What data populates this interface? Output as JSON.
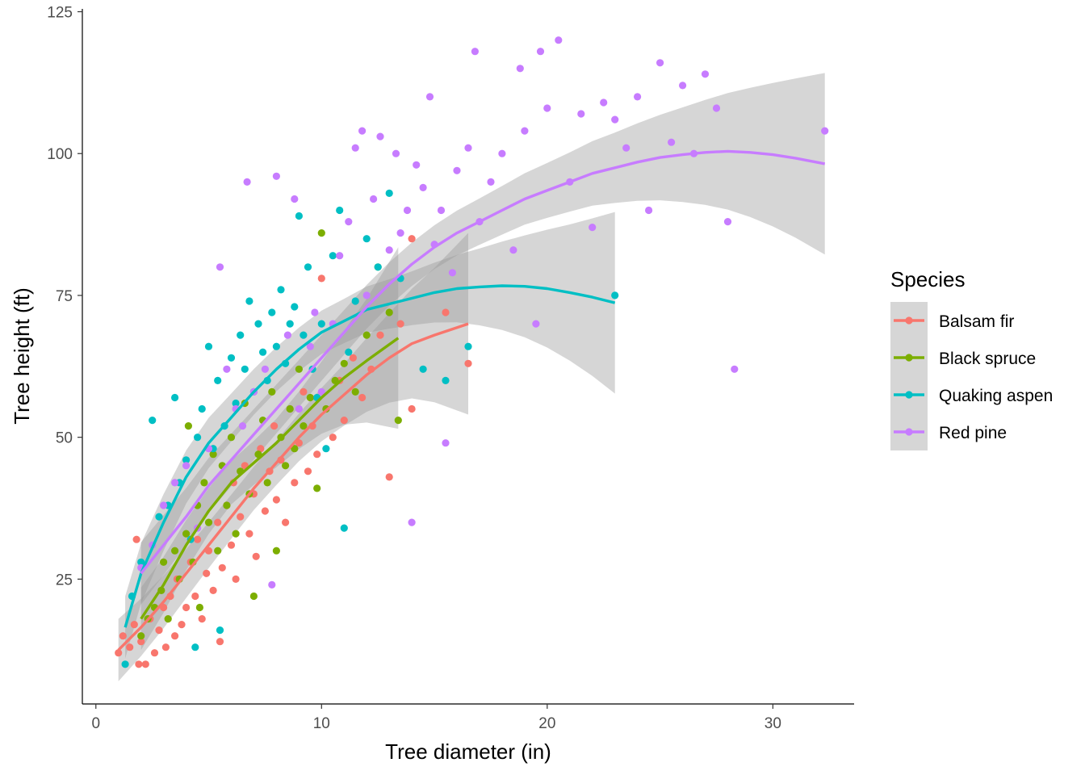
{
  "chart_data": {
    "type": "scatter",
    "title": "",
    "xlabel": "Tree diameter (in)",
    "ylabel": "Tree height (ft)",
    "xlim": [
      -0.6,
      33.6
    ],
    "ylim": [
      3,
      125.5
    ],
    "x_ticks": [
      0,
      10,
      20,
      30
    ],
    "y_ticks": [
      25,
      50,
      75,
      100,
      125
    ],
    "grid": false,
    "legend": {
      "title": "Species",
      "position": "right"
    },
    "smoother": "loess with 95% confidence band",
    "series": [
      {
        "name": "Balsam fir",
        "color": "#F8766D",
        "points": [
          [
            1.0,
            12
          ],
          [
            1.2,
            15
          ],
          [
            1.5,
            13
          ],
          [
            1.7,
            17
          ],
          [
            1.8,
            32
          ],
          [
            1.9,
            10
          ],
          [
            2.0,
            14
          ],
          [
            2.2,
            10
          ],
          [
            2.4,
            18
          ],
          [
            2.6,
            12
          ],
          [
            2.8,
            16
          ],
          [
            3.0,
            20
          ],
          [
            3.1,
            13
          ],
          [
            3.3,
            22
          ],
          [
            3.5,
            15
          ],
          [
            3.6,
            25
          ],
          [
            3.8,
            17
          ],
          [
            4.0,
            20
          ],
          [
            4.2,
            28
          ],
          [
            4.4,
            22
          ],
          [
            4.5,
            32
          ],
          [
            4.7,
            18
          ],
          [
            4.9,
            26
          ],
          [
            5.0,
            30
          ],
          [
            5.2,
            23
          ],
          [
            5.4,
            35
          ],
          [
            5.5,
            14
          ],
          [
            5.6,
            27
          ],
          [
            5.8,
            38
          ],
          [
            6.0,
            31
          ],
          [
            6.1,
            42
          ],
          [
            6.2,
            25
          ],
          [
            6.4,
            36
          ],
          [
            6.6,
            45
          ],
          [
            6.8,
            33
          ],
          [
            7.0,
            40
          ],
          [
            7.1,
            29
          ],
          [
            7.3,
            48
          ],
          [
            7.5,
            37
          ],
          [
            7.7,
            44
          ],
          [
            7.9,
            52
          ],
          [
            8.0,
            39
          ],
          [
            8.2,
            46
          ],
          [
            8.4,
            35
          ],
          [
            8.6,
            55
          ],
          [
            8.8,
            42
          ],
          [
            9.0,
            49
          ],
          [
            9.2,
            58
          ],
          [
            9.4,
            44
          ],
          [
            9.6,
            52
          ],
          [
            9.8,
            47
          ],
          [
            10.0,
            78
          ],
          [
            10.2,
            55
          ],
          [
            10.5,
            50
          ],
          [
            10.8,
            60
          ],
          [
            11.0,
            53
          ],
          [
            11.4,
            64
          ],
          [
            11.8,
            57
          ],
          [
            12.2,
            62
          ],
          [
            12.6,
            68
          ],
          [
            13.0,
            43
          ],
          [
            13.5,
            70
          ],
          [
            14.0,
            55
          ],
          [
            14.0,
            85
          ],
          [
            15.5,
            72
          ],
          [
            16.5,
            63
          ]
        ],
        "fit": [
          [
            1.0,
            12.5
          ],
          [
            2,
            16.5
          ],
          [
            3,
            21
          ],
          [
            4,
            26
          ],
          [
            5,
            31
          ],
          [
            6,
            36
          ],
          [
            7,
            41
          ],
          [
            8,
            45.5
          ],
          [
            9,
            50
          ],
          [
            10,
            54
          ],
          [
            11,
            57.5
          ],
          [
            12,
            61
          ],
          [
            13,
            64
          ],
          [
            14,
            66.5
          ],
          [
            15,
            68
          ],
          [
            16.5,
            70
          ]
        ]
      },
      {
        "name": "Black spruce",
        "color": "#7CAE00",
        "points": [
          [
            2.0,
            15
          ],
          [
            2.3,
            18
          ],
          [
            2.6,
            20
          ],
          [
            2.9,
            23
          ],
          [
            3.0,
            28
          ],
          [
            3.2,
            18
          ],
          [
            3.5,
            30
          ],
          [
            3.7,
            25
          ],
          [
            4.0,
            33
          ],
          [
            4.1,
            52
          ],
          [
            4.3,
            28
          ],
          [
            4.5,
            38
          ],
          [
            4.6,
            20
          ],
          [
            4.8,
            42
          ],
          [
            5.0,
            35
          ],
          [
            5.2,
            47
          ],
          [
            5.4,
            30
          ],
          [
            5.6,
            45
          ],
          [
            5.8,
            38
          ],
          [
            6.0,
            50
          ],
          [
            6.2,
            33
          ],
          [
            6.4,
            44
          ],
          [
            6.6,
            56
          ],
          [
            6.8,
            40
          ],
          [
            7.0,
            22
          ],
          [
            7.2,
            47
          ],
          [
            7.4,
            53
          ],
          [
            7.6,
            42
          ],
          [
            7.8,
            58
          ],
          [
            8.0,
            30
          ],
          [
            8.2,
            50
          ],
          [
            8.4,
            45
          ],
          [
            8.6,
            55
          ],
          [
            8.8,
            48
          ],
          [
            9.0,
            62
          ],
          [
            9.2,
            52
          ],
          [
            9.5,
            57
          ],
          [
            9.8,
            41
          ],
          [
            10.0,
            86
          ],
          [
            10.2,
            55
          ],
          [
            10.6,
            60
          ],
          [
            11.0,
            63
          ],
          [
            11.5,
            58
          ],
          [
            12.0,
            68
          ],
          [
            12.5,
            80
          ],
          [
            13.0,
            72
          ],
          [
            13.4,
            53
          ]
        ],
        "fit": [
          [
            2.0,
            18
          ],
          [
            3,
            24
          ],
          [
            4,
            31
          ],
          [
            5,
            37
          ],
          [
            6,
            42
          ],
          [
            7,
            45.5
          ],
          [
            8,
            49
          ],
          [
            9,
            53
          ],
          [
            10,
            57
          ],
          [
            11,
            60.5
          ],
          [
            12,
            63.5
          ],
          [
            13.4,
            67.5
          ]
        ]
      },
      {
        "name": "Quaking aspen",
        "color": "#00BFC4",
        "points": [
          [
            1.3,
            10
          ],
          [
            1.6,
            22
          ],
          [
            2.0,
            28
          ],
          [
            2.5,
            53
          ],
          [
            2.8,
            36
          ],
          [
            3.2,
            38
          ],
          [
            3.5,
            57
          ],
          [
            3.7,
            42
          ],
          [
            4.0,
            46
          ],
          [
            4.2,
            32
          ],
          [
            4.4,
            13
          ],
          [
            4.5,
            50
          ],
          [
            4.7,
            55
          ],
          [
            5.0,
            66
          ],
          [
            5.2,
            48
          ],
          [
            5.4,
            60
          ],
          [
            5.5,
            16
          ],
          [
            5.7,
            52
          ],
          [
            6.0,
            64
          ],
          [
            6.2,
            56
          ],
          [
            6.4,
            68
          ],
          [
            6.6,
            62
          ],
          [
            6.8,
            74
          ],
          [
            7.0,
            58
          ],
          [
            7.2,
            70
          ],
          [
            7.4,
            65
          ],
          [
            7.6,
            60
          ],
          [
            7.8,
            72
          ],
          [
            8.0,
            66
          ],
          [
            8.2,
            76
          ],
          [
            8.4,
            63
          ],
          [
            8.6,
            70
          ],
          [
            8.8,
            73
          ],
          [
            9.0,
            89
          ],
          [
            9.2,
            68
          ],
          [
            9.4,
            80
          ],
          [
            9.6,
            62
          ],
          [
            9.8,
            57
          ],
          [
            10.0,
            70
          ],
          [
            10.2,
            48
          ],
          [
            10.5,
            82
          ],
          [
            10.8,
            90
          ],
          [
            11.0,
            34
          ],
          [
            11.2,
            65
          ],
          [
            11.5,
            74
          ],
          [
            12.0,
            85
          ],
          [
            12.5,
            80
          ],
          [
            13.0,
            93
          ],
          [
            13.5,
            78
          ],
          [
            14.5,
            62
          ],
          [
            15.5,
            60
          ],
          [
            16.5,
            66
          ],
          [
            23.0,
            75
          ]
        ],
        "fit": [
          [
            1.3,
            16.5
          ],
          [
            2,
            26
          ],
          [
            3,
            35
          ],
          [
            4,
            43
          ],
          [
            5,
            49
          ],
          [
            6,
            53.5
          ],
          [
            7,
            58
          ],
          [
            8,
            62
          ],
          [
            9,
            65.5
          ],
          [
            10,
            68.5
          ],
          [
            11,
            70.5
          ],
          [
            12,
            72.5
          ],
          [
            13,
            73.5
          ],
          [
            14,
            74.5
          ],
          [
            15,
            75.5
          ],
          [
            16,
            76.2
          ],
          [
            17,
            76.5
          ],
          [
            18,
            76.7
          ],
          [
            19,
            76.6
          ],
          [
            20,
            76.2
          ],
          [
            21,
            75.5
          ],
          [
            22,
            74.7
          ],
          [
            23,
            73.7
          ]
        ]
      },
      {
        "name": "Red pine",
        "color": "#C77CFF",
        "points": [
          [
            2.0,
            27
          ],
          [
            2.5,
            31
          ],
          [
            3.0,
            38
          ],
          [
            3.5,
            42
          ],
          [
            4.0,
            45
          ],
          [
            4.5,
            34
          ],
          [
            5.0,
            48
          ],
          [
            5.5,
            80
          ],
          [
            5.8,
            62
          ],
          [
            6.2,
            55
          ],
          [
            6.5,
            52
          ],
          [
            6.7,
            95
          ],
          [
            7.0,
            58
          ],
          [
            7.5,
            62
          ],
          [
            7.8,
            24
          ],
          [
            8.0,
            96
          ],
          [
            8.5,
            68
          ],
          [
            8.8,
            92
          ],
          [
            9.0,
            55
          ],
          [
            9.5,
            66
          ],
          [
            9.7,
            72
          ],
          [
            10.0,
            58
          ],
          [
            10.5,
            70
          ],
          [
            10.8,
            82
          ],
          [
            11.2,
            88
          ],
          [
            11.5,
            101
          ],
          [
            11.8,
            104
          ],
          [
            12.0,
            75
          ],
          [
            12.3,
            92
          ],
          [
            12.6,
            103
          ],
          [
            13.0,
            83
          ],
          [
            13.3,
            100
          ],
          [
            13.5,
            86
          ],
          [
            13.8,
            90
          ],
          [
            14.0,
            35
          ],
          [
            14.2,
            98
          ],
          [
            14.5,
            94
          ],
          [
            14.8,
            110
          ],
          [
            15.0,
            84
          ],
          [
            15.3,
            90
          ],
          [
            15.5,
            49
          ],
          [
            15.8,
            79
          ],
          [
            16.0,
            97
          ],
          [
            16.5,
            101
          ],
          [
            16.8,
            118
          ],
          [
            17.0,
            88
          ],
          [
            17.5,
            95
          ],
          [
            18.0,
            100
          ],
          [
            18.5,
            83
          ],
          [
            18.8,
            115
          ],
          [
            19.0,
            104
          ],
          [
            19.5,
            70
          ],
          [
            19.7,
            118
          ],
          [
            20.0,
            108
          ],
          [
            20.5,
            120
          ],
          [
            21.0,
            95
          ],
          [
            21.5,
            107
          ],
          [
            22.0,
            87
          ],
          [
            22.5,
            109
          ],
          [
            23.0,
            106
          ],
          [
            23.5,
            101
          ],
          [
            24.0,
            110
          ],
          [
            24.5,
            90
          ],
          [
            25.0,
            116
          ],
          [
            25.5,
            102
          ],
          [
            26.0,
            112
          ],
          [
            26.5,
            100
          ],
          [
            27.0,
            114
          ],
          [
            27.5,
            108
          ],
          [
            28.0,
            88
          ],
          [
            28.3,
            62
          ],
          [
            32.3,
            104
          ]
        ],
        "fit": [
          [
            2.0,
            26
          ],
          [
            3,
            31
          ],
          [
            4,
            36
          ],
          [
            5,
            41.5
          ],
          [
            6,
            46
          ],
          [
            7,
            50.5
          ],
          [
            8,
            55
          ],
          [
            9,
            59.5
          ],
          [
            10,
            64
          ],
          [
            11,
            68.5
          ],
          [
            12,
            73
          ],
          [
            13,
            77
          ],
          [
            14,
            80.5
          ],
          [
            15,
            83.5
          ],
          [
            16,
            86
          ],
          [
            17,
            88
          ],
          [
            18,
            90
          ],
          [
            19,
            92
          ],
          [
            20,
            93.5
          ],
          [
            21,
            95
          ],
          [
            22,
            96.5
          ],
          [
            23,
            97.5
          ],
          [
            24,
            98.5
          ],
          [
            25,
            99.3
          ],
          [
            26,
            99.8
          ],
          [
            27,
            100.2
          ],
          [
            28,
            100.4
          ],
          [
            29,
            100.2
          ],
          [
            30,
            99.8
          ],
          [
            31,
            99.2
          ],
          [
            32.3,
            98.2
          ]
        ]
      }
    ]
  }
}
